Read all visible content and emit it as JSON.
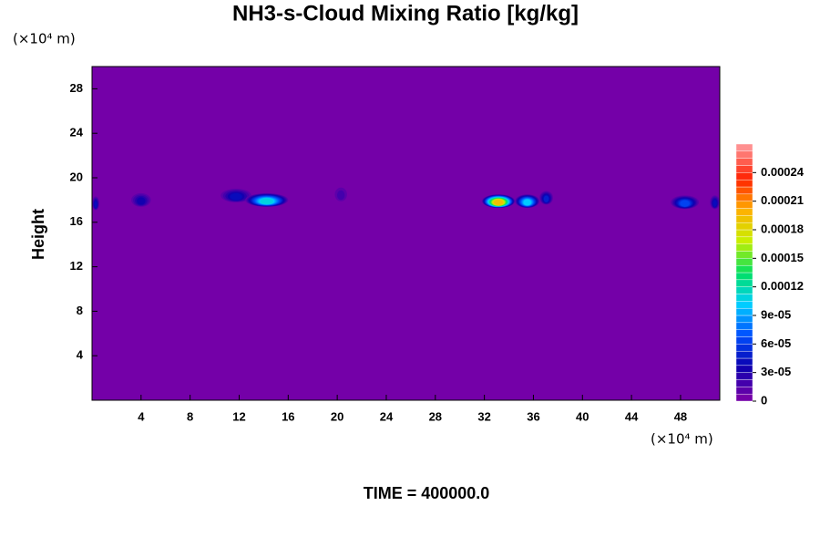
{
  "chart_data": {
    "type": "contour",
    "title": "NH3-s-Cloud Mixing Ratio [kg/kg]",
    "x_unit": "(×10⁴ m)",
    "y_unit": "(×10⁴ m)",
    "ylabel": "Height",
    "time_label": "TIME = 400000.0",
    "xlim": [
      0,
      51.2
    ],
    "ylim": [
      0,
      30
    ],
    "xticks": [
      4,
      8,
      12,
      16,
      20,
      24,
      28,
      32,
      36,
      40,
      44,
      48
    ],
    "yticks": [
      4,
      8,
      12,
      16,
      20,
      24,
      28
    ],
    "clim": [
      0,
      0.00027
    ],
    "n_levels": 36,
    "colormap": [
      "#7400a8",
      "#0a00b0",
      "#0050ff",
      "#00d0ff",
      "#00e060",
      "#c8f000",
      "#ffb000",
      "#ff2000",
      "#ff9090"
    ],
    "cticks": [
      0,
      {
        "value": 3e-05,
        "label": "3e-05"
      },
      {
        "value": 6e-05,
        "label": "6e-05"
      },
      {
        "value": 9e-05,
        "label": "9e-05"
      },
      0.00012,
      0.00015,
      0.00018,
      0.00021,
      0.00024
    ],
    "features": [
      {
        "x": [
          0,
          0.6
        ],
        "y": 17.7,
        "peak": 4e-05
      },
      {
        "x": [
          3.2,
          4.8
        ],
        "y": 18.0,
        "peak": 3e-05
      },
      {
        "x": [
          10.5,
          13
        ],
        "y": 18.4,
        "peak": 4e-05
      },
      {
        "x": [
          12.5,
          16
        ],
        "y": 18.0,
        "peak": 0.00011
      },
      {
        "x": [
          19.8,
          20.8
        ],
        "y": 18.5,
        "peak": 2e-05
      },
      {
        "x": [
          31.8,
          34.5
        ],
        "y": 17.9,
        "peak": 0.00019
      },
      {
        "x": [
          34.5,
          36.5
        ],
        "y": 17.9,
        "peak": 0.0001
      },
      {
        "x": [
          36.5,
          37.6
        ],
        "y": 18.2,
        "peak": 5e-05
      },
      {
        "x": [
          47.2,
          49.5
        ],
        "y": 17.8,
        "peak": 6e-05
      },
      {
        "x": [
          50.4,
          51.2
        ],
        "y": 17.8,
        "peak": 4e-05
      }
    ]
  }
}
